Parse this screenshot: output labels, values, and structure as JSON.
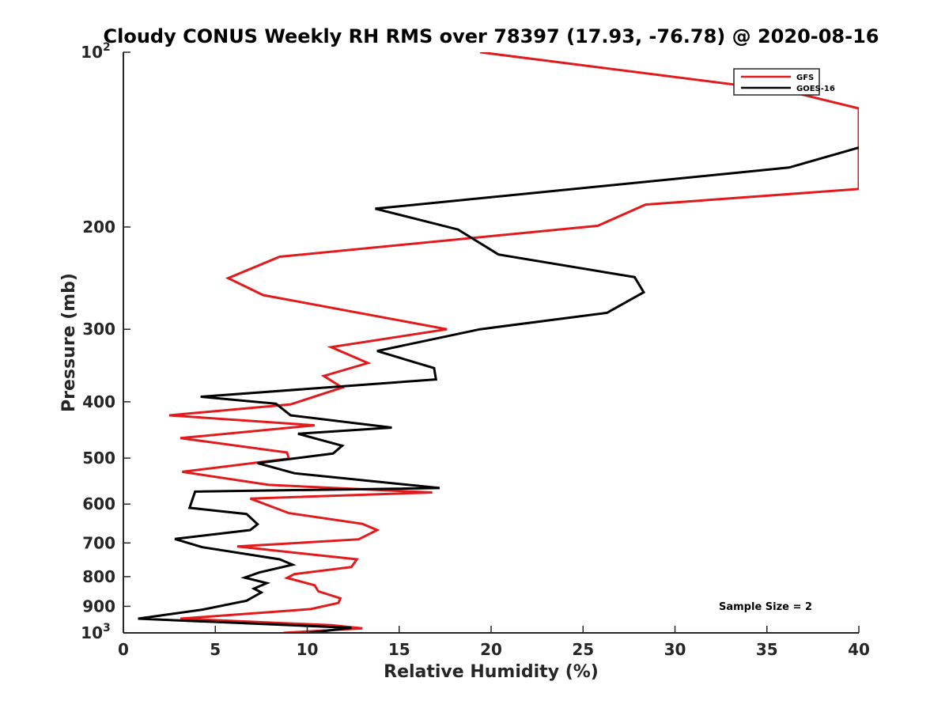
{
  "chart_data": {
    "type": "line",
    "title": "Cloudy CONUS Weekly RH RMS over 78397 (17.93, -76.78) @ 2020-08-16",
    "xlabel": "Relative Humidity (%)",
    "ylabel": "Pressure (mb)",
    "xlim": [
      0,
      40
    ],
    "ylim": [
      100,
      1000
    ],
    "y_scale": "log",
    "y_reversed": true,
    "grid": false,
    "legend_position": "top-right",
    "x_ticks": [
      "0",
      "5",
      "10",
      "15",
      "20",
      "25",
      "30",
      "35",
      "40"
    ],
    "y_ticks": [
      {
        "value": 100,
        "base": "10",
        "exp": "2"
      },
      {
        "value": 200,
        "label": "200"
      },
      {
        "value": 300,
        "label": "300"
      },
      {
        "value": 400,
        "label": "400"
      },
      {
        "value": 500,
        "label": "500"
      },
      {
        "value": 600,
        "label": "600"
      },
      {
        "value": 700,
        "label": "700"
      },
      {
        "value": 800,
        "label": "800"
      },
      {
        "value": 900,
        "label": "900"
      },
      {
        "value": 1000,
        "base": "10",
        "exp": "3"
      }
    ],
    "annotation": "Sample Size = 2",
    "series": [
      {
        "name": "GFS",
        "color": "#e31a1c",
        "points": [
          [
            19.4,
            100
          ],
          [
            36.3,
            117
          ],
          [
            40.0,
            125
          ],
          [
            40.0,
            172
          ],
          [
            28.4,
            183
          ],
          [
            25.8,
            199
          ],
          [
            8.5,
            225
          ],
          [
            5.7,
            245
          ],
          [
            7.6,
            262
          ],
          [
            17.6,
            300
          ],
          [
            11.3,
            322
          ],
          [
            13.3,
            343
          ],
          [
            10.9,
            361
          ],
          [
            11.9,
            378
          ],
          [
            9.1,
            404
          ],
          [
            2.5,
            422
          ],
          [
            10.4,
            439
          ],
          [
            3.1,
            462
          ],
          [
            8.9,
            489
          ],
          [
            9.0,
            501
          ],
          [
            3.2,
            528
          ],
          [
            7.9,
            556
          ],
          [
            16.8,
            573
          ],
          [
            6.9,
            587
          ],
          [
            9.0,
            622
          ],
          [
            13.0,
            649
          ],
          [
            13.8,
            665
          ],
          [
            12.8,
            690
          ],
          [
            6.2,
            710
          ],
          [
            12.7,
            747
          ],
          [
            12.4,
            770
          ],
          [
            9.3,
            792
          ],
          [
            8.9,
            804
          ],
          [
            10.4,
            828
          ],
          [
            10.6,
            848
          ],
          [
            11.8,
            872
          ],
          [
            11.7,
            888
          ],
          [
            10.2,
            910
          ],
          [
            3.1,
            945
          ],
          [
            11.3,
            970
          ],
          [
            13.0,
            982
          ],
          [
            8.7,
            1000
          ]
        ]
      },
      {
        "name": "GOES-16",
        "color": "#000000",
        "points": [
          [
            40.0,
            146
          ],
          [
            36.2,
            158
          ],
          [
            13.7,
            186
          ],
          [
            18.2,
            202
          ],
          [
            20.4,
            223
          ],
          [
            27.8,
            244
          ],
          [
            28.3,
            259
          ],
          [
            26.3,
            281
          ],
          [
            19.4,
            300
          ],
          [
            13.8,
            327
          ],
          [
            16.9,
            350
          ],
          [
            17.0,
            366
          ],
          [
            4.2,
            392
          ],
          [
            8.3,
            403
          ],
          [
            9.1,
            422
          ],
          [
            14.6,
            443
          ],
          [
            9.5,
            454
          ],
          [
            11.9,
            476
          ],
          [
            11.4,
            491
          ],
          [
            7.3,
            510
          ],
          [
            9.3,
            531
          ],
          [
            17.2,
            563
          ],
          [
            3.9,
            571
          ],
          [
            3.6,
            609
          ],
          [
            6.7,
            624
          ],
          [
            7.3,
            650
          ],
          [
            6.9,
            665
          ],
          [
            2.8,
            689
          ],
          [
            4.3,
            712
          ],
          [
            8.5,
            747
          ],
          [
            9.2,
            763
          ],
          [
            7.4,
            787
          ],
          [
            6.6,
            803
          ],
          [
            7.8,
            821
          ],
          [
            7.1,
            839
          ],
          [
            7.5,
            852
          ],
          [
            6.7,
            880
          ],
          [
            4.3,
            912
          ],
          [
            0.8,
            945
          ],
          [
            12.4,
            980
          ],
          [
            10.1,
            1000
          ]
        ]
      }
    ]
  }
}
